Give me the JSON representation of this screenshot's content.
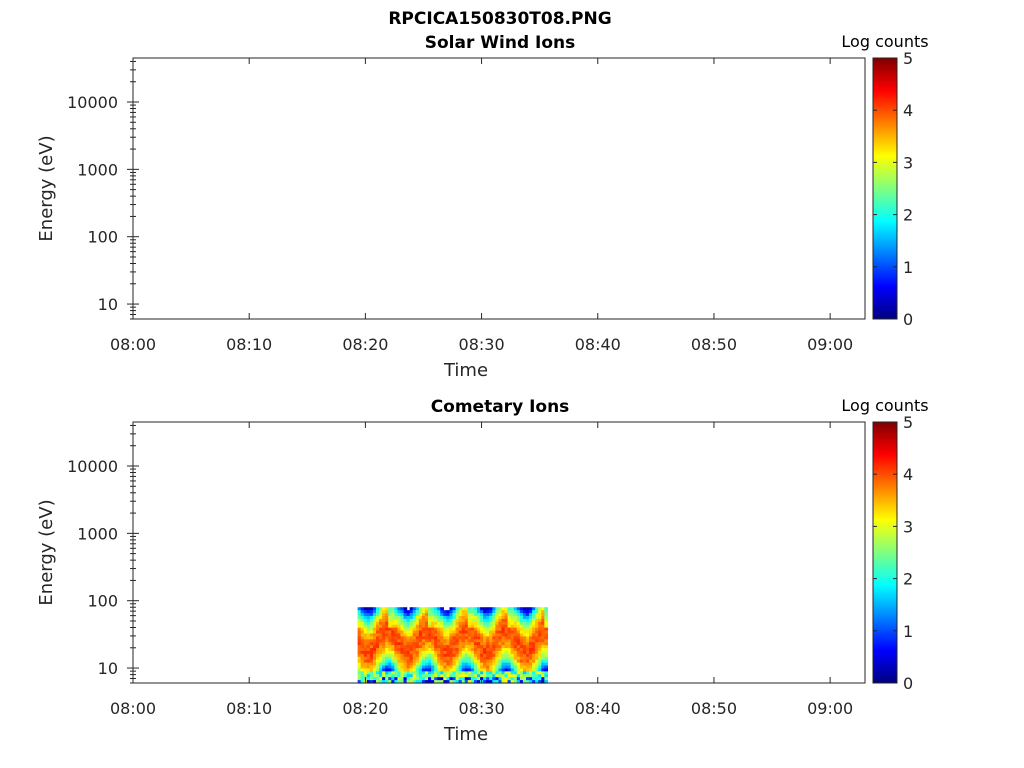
{
  "figure_title": "RPCICA150830T08.PNG",
  "chart_data": [
    {
      "type": "heatmap",
      "title": "Solar Wind Ions",
      "xlabel": "Time",
      "ylabel": "Energy (eV)",
      "x_ticks": [
        "08:00",
        "08:10",
        "08:20",
        "08:30",
        "08:40",
        "08:50",
        "09:00"
      ],
      "y_ticks": [
        "10",
        "100",
        "1000",
        "10000"
      ],
      "y_scale": "log",
      "ylim": [
        6,
        45000
      ],
      "xlim": [
        "08:00",
        "09:03"
      ],
      "colorbar": {
        "label": "Log counts",
        "ticks": [
          "0",
          "1",
          "2",
          "3",
          "4",
          "5"
        ],
        "range": [
          0,
          5
        ],
        "colormap": "jet"
      },
      "data_present": false,
      "data_segment": null
    },
    {
      "type": "heatmap",
      "title": "Cometary Ions",
      "xlabel": "Time",
      "ylabel": "Energy (eV)",
      "x_ticks": [
        "08:00",
        "08:10",
        "08:20",
        "08:30",
        "08:40",
        "08:50",
        "09:00"
      ],
      "y_ticks": [
        "10",
        "100",
        "1000",
        "10000"
      ],
      "y_scale": "log",
      "ylim": [
        6,
        45000
      ],
      "xlim": [
        "08:00",
        "09:03"
      ],
      "colorbar": {
        "label": "Log counts",
        "ticks": [
          "0",
          "1",
          "2",
          "3",
          "4",
          "5"
        ],
        "range": [
          0,
          5
        ],
        "colormap": "jet"
      },
      "data_present": true,
      "data_segment": {
        "time_start": "08:19:20",
        "time_end": "08:35:40",
        "energy_min_eV": 6,
        "energy_max_eV": 80,
        "peak_energy_eV": 25,
        "peak_log_counts": 4.0,
        "oscillation_period_min": 3.4
      }
    }
  ]
}
